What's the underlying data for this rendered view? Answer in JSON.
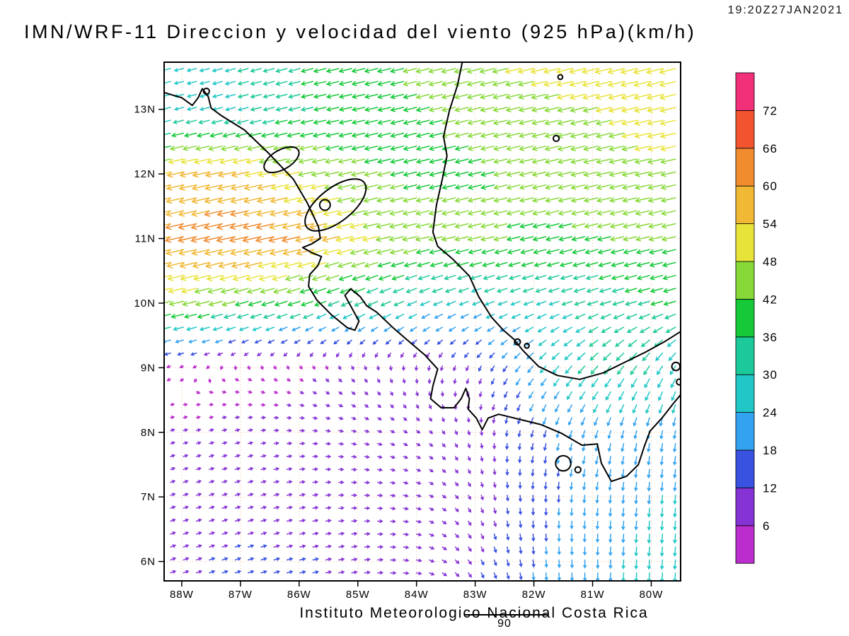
{
  "header": {
    "title": "IMN/WRF-11 Direccion y velocidad del viento (925 hPa)(km/h)",
    "timestamp": "19:20Z27JAN2021"
  },
  "footer": {
    "credit": "Instituto Meteorologico Nacional Costa Rica",
    "overlay_label": "90"
  },
  "chart_data": {
    "type": "quiver",
    "title": "IMN/WRF-11 Direccion y velocidad del viento (925 hPa)(km/h)",
    "level": "925 hPa",
    "units": "km/h",
    "valid_time": "19:20Z27JAN2021",
    "x_ticks": [
      "88W",
      "87W",
      "86W",
      "85W",
      "84W",
      "83W",
      "82W",
      "81W",
      "80W"
    ],
    "x_tick_lons": [
      -88,
      -87,
      -86,
      -85,
      -84,
      -83,
      -82,
      -81,
      -80
    ],
    "y_ticks": [
      "13N",
      "12N",
      "11N",
      "10N",
      "9N",
      "8N",
      "7N",
      "6N"
    ],
    "y_tick_lats": [
      13,
      12,
      11,
      10,
      9,
      8,
      7,
      6
    ],
    "lon_range": [
      -88.3,
      -79.5
    ],
    "lat_range": [
      5.7,
      13.73
    ],
    "grid_dotted": true,
    "grid_color": "#f0b078",
    "coast_color": "#000000",
    "colorbar": {
      "labels_top_to_bottom": [
        "72",
        "66",
        "60",
        "54",
        "48",
        "42",
        "36",
        "30",
        "24",
        "18",
        "12",
        "6"
      ],
      "thresholds": [
        6,
        12,
        18,
        24,
        30,
        36,
        42,
        48,
        54,
        60,
        66,
        72
      ],
      "colors_low_to_high": [
        "#bb2dcc",
        "#8633d6",
        "#3952e0",
        "#33a3f0",
        "#21c7c7",
        "#1cc99a",
        "#15c938",
        "#86d938",
        "#e8e338",
        "#f0b835",
        "#f08c2e",
        "#f25430",
        "#f2307a"
      ]
    },
    "wind_grid": {
      "comment": "u=eastward, v=northward wind components in km/h on a 1-degree grid, rows ordered by ascending latitude",
      "lons": [
        -89,
        -88,
        -87,
        -86,
        -85,
        -84,
        -83,
        -82,
        -81,
        -80,
        -79
      ],
      "lats": [
        6,
        7,
        8,
        9,
        10,
        11,
        12,
        13,
        14
      ],
      "u": [
        [
          10,
          11,
          12,
          12,
          11,
          10,
          6,
          2,
          0,
          -2,
          -2
        ],
        [
          8,
          9,
          10,
          10,
          9,
          8,
          4,
          0,
          -2,
          -2,
          -2
        ],
        [
          6,
          7,
          8,
          8,
          8,
          6,
          2,
          -4,
          -6,
          -4,
          -2
        ],
        [
          -6,
          -4,
          2,
          4,
          4,
          0,
          -4,
          -14,
          -20,
          -16,
          -12
        ],
        [
          -44,
          -44,
          -40,
          -36,
          -30,
          -26,
          -24,
          -26,
          -30,
          -34,
          -36
        ],
        [
          -52,
          -60,
          -62,
          -60,
          -50,
          -44,
          -42,
          -40,
          -40,
          -42,
          -42
        ],
        [
          -48,
          -54,
          -56,
          -48,
          -42,
          -40,
          -40,
          -42,
          -44,
          -46,
          -46
        ],
        [
          -20,
          -24,
          -28,
          -34,
          -38,
          -40,
          -42,
          -44,
          -46,
          -48,
          -50
        ],
        [
          -24,
          -26,
          -30,
          -34,
          -40,
          -42,
          -46,
          -50,
          -52,
          -54,
          -54
        ]
      ],
      "v": [
        [
          4,
          4,
          4,
          3,
          2,
          -2,
          -10,
          -18,
          -22,
          -26,
          -26
        ],
        [
          3,
          3,
          3,
          2,
          0,
          -2,
          -8,
          -16,
          -20,
          -24,
          -24
        ],
        [
          2,
          2,
          2,
          0,
          -2,
          -4,
          -8,
          -16,
          -20,
          -22,
          -22
        ],
        [
          -2,
          -2,
          -2,
          -4,
          -6,
          -8,
          -10,
          -18,
          -24,
          -26,
          -24
        ],
        [
          -10,
          -10,
          -12,
          -12,
          -14,
          -12,
          -10,
          -10,
          -10,
          -10,
          -10
        ],
        [
          -12,
          -14,
          -14,
          -14,
          -12,
          -10,
          -10,
          -10,
          -10,
          -10,
          -10
        ],
        [
          -10,
          -12,
          -12,
          -10,
          -10,
          -10,
          -10,
          -10,
          -10,
          -10,
          -10
        ],
        [
          -5,
          -6,
          -8,
          -8,
          -8,
          -10,
          -10,
          -10,
          -12,
          -12,
          -12
        ],
        [
          -6,
          -6,
          -8,
          -10,
          -10,
          -10,
          -12,
          -12,
          -12,
          -14,
          -14
        ]
      ]
    },
    "coastlines": {
      "pacific": [
        [
          -88.3,
          13.26
        ],
        [
          -88.0,
          13.18
        ],
        [
          -87.82,
          13.06
        ],
        [
          -87.72,
          13.18
        ],
        [
          -87.65,
          13.32
        ],
        [
          -87.55,
          13.2
        ],
        [
          -87.5,
          13.02
        ],
        [
          -87.32,
          12.9
        ],
        [
          -86.93,
          12.68
        ],
        [
          -86.52,
          12.32
        ],
        [
          -86.1,
          11.92
        ],
        [
          -85.86,
          11.55
        ],
        [
          -85.67,
          11.18
        ],
        [
          -85.64,
          11.0
        ],
        [
          -85.78,
          10.92
        ],
        [
          -85.94,
          10.86
        ],
        [
          -85.78,
          10.78
        ],
        [
          -85.62,
          10.72
        ],
        [
          -85.68,
          10.58
        ],
        [
          -85.82,
          10.44
        ],
        [
          -85.84,
          10.26
        ],
        [
          -85.7,
          10.05
        ],
        [
          -85.45,
          9.82
        ],
        [
          -85.18,
          9.62
        ],
        [
          -85.05,
          9.58
        ],
        [
          -84.98,
          9.72
        ],
        [
          -85.1,
          9.92
        ],
        [
          -85.22,
          10.12
        ],
        [
          -85.12,
          10.22
        ],
        [
          -84.96,
          10.1
        ],
        [
          -84.85,
          9.96
        ],
        [
          -84.68,
          9.86
        ],
        [
          -84.4,
          9.62
        ],
        [
          -84.12,
          9.4
        ],
        [
          -83.86,
          9.2
        ],
        [
          -83.64,
          8.98
        ],
        [
          -83.72,
          8.72
        ],
        [
          -83.76,
          8.52
        ],
        [
          -83.58,
          8.38
        ],
        [
          -83.36,
          8.38
        ],
        [
          -83.24,
          8.52
        ],
        [
          -83.16,
          8.68
        ],
        [
          -83.1,
          8.52
        ],
        [
          -83.12,
          8.36
        ],
        [
          -82.98,
          8.22
        ],
        [
          -82.88,
          8.04
        ],
        [
          -82.78,
          8.22
        ],
        [
          -82.6,
          8.28
        ],
        [
          -82.24,
          8.2
        ],
        [
          -81.88,
          8.12
        ],
        [
          -81.52,
          7.98
        ],
        [
          -81.18,
          7.8
        ],
        [
          -80.92,
          7.82
        ],
        [
          -80.85,
          7.52
        ],
        [
          -80.68,
          7.24
        ],
        [
          -80.42,
          7.32
        ],
        [
          -80.22,
          7.5
        ],
        [
          -80.12,
          7.78
        ],
        [
          -80.02,
          8.02
        ],
        [
          -79.82,
          8.22
        ],
        [
          -79.62,
          8.45
        ],
        [
          -79.5,
          8.58
        ]
      ],
      "caribbean": [
        [
          -83.22,
          13.73
        ],
        [
          -83.3,
          13.38
        ],
        [
          -83.44,
          12.98
        ],
        [
          -83.54,
          12.58
        ],
        [
          -83.48,
          12.28
        ],
        [
          -83.56,
          11.92
        ],
        [
          -83.66,
          11.52
        ],
        [
          -83.72,
          11.1
        ],
        [
          -83.64,
          10.88
        ],
        [
          -83.38,
          10.68
        ],
        [
          -83.1,
          10.42
        ],
        [
          -82.94,
          10.1
        ],
        [
          -82.72,
          9.78
        ],
        [
          -82.52,
          9.58
        ],
        [
          -82.34,
          9.44
        ],
        [
          -82.18,
          9.26
        ],
        [
          -81.92,
          9.02
        ],
        [
          -81.6,
          8.88
        ],
        [
          -81.22,
          8.82
        ],
        [
          -80.82,
          8.92
        ],
        [
          -80.46,
          9.08
        ],
        [
          -80.1,
          9.24
        ],
        [
          -79.78,
          9.4
        ],
        [
          -79.5,
          9.56
        ]
      ],
      "lakes": [
        {
          "name": "lake-nicaragua",
          "center": [
            -85.38,
            11.52
          ],
          "rx": 0.62,
          "ry": 0.26,
          "rot": -38
        },
        {
          "name": "lake-managua",
          "center": [
            -86.3,
            12.22
          ],
          "rx": 0.33,
          "ry": 0.15,
          "rot": -30
        }
      ],
      "islands": [
        {
          "name": "ometepe",
          "center": [
            -85.56,
            11.52
          ],
          "r": 0.09
        },
        {
          "name": "san-andres",
          "center": [
            -81.62,
            12.55
          ],
          "r": 0.05
        },
        {
          "name": "providencia",
          "center": [
            -81.55,
            13.5
          ],
          "r": 0.04
        },
        {
          "name": "coiba",
          "center": [
            -81.5,
            7.52
          ],
          "r": 0.13
        },
        {
          "name": "island-small-1",
          "center": [
            -81.25,
            7.42
          ],
          "r": 0.05
        },
        {
          "name": "bocas-1",
          "center": [
            -82.28,
            9.4
          ],
          "r": 0.05
        },
        {
          "name": "bocas-2",
          "center": [
            -82.12,
            9.34
          ],
          "r": 0.04
        },
        {
          "name": "fonseca-isle",
          "center": [
            -87.58,
            13.28
          ],
          "r": 0.05
        },
        {
          "name": "panama-isle-1",
          "center": [
            -79.58,
            9.02
          ],
          "r": 0.07
        },
        {
          "name": "panama-isle-2",
          "center": [
            -79.52,
            8.78
          ],
          "r": 0.05
        }
      ]
    }
  }
}
